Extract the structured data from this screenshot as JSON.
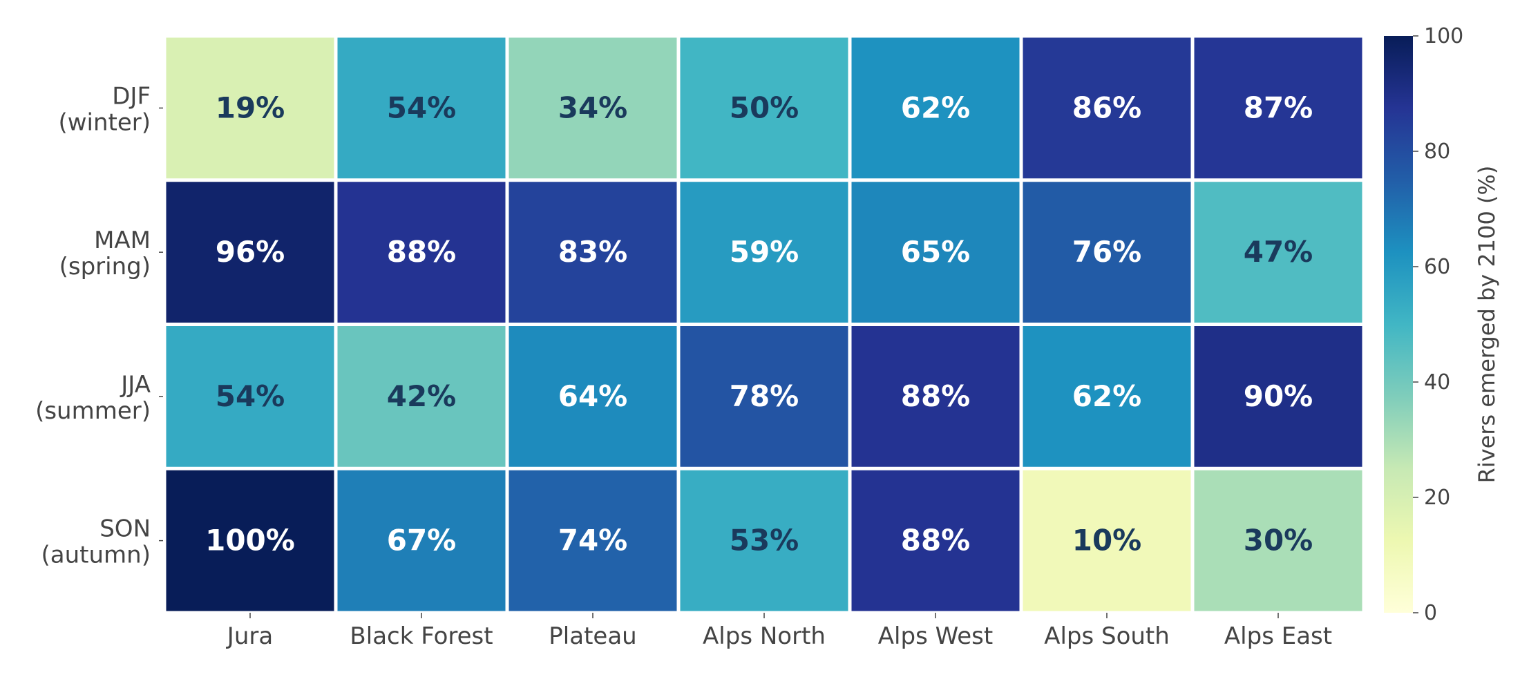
{
  "chart_data": {
    "type": "heatmap",
    "title": "",
    "xlabel": "",
    "ylabel": "",
    "x_categories": [
      "Jura",
      "Black Forest",
      "Plateau",
      "Alps North",
      "Alps West",
      "Alps South",
      "Alps East"
    ],
    "y_categories": [
      [
        "DJF",
        "(winter)"
      ],
      [
        "MAM",
        "(spring)"
      ],
      [
        "JJA",
        "(summer)"
      ],
      [
        "SON",
        "(autumn)"
      ]
    ],
    "values": [
      [
        19,
        54,
        34,
        50,
        62,
        86,
        87
      ],
      [
        96,
        88,
        83,
        59,
        65,
        76,
        47
      ],
      [
        54,
        42,
        64,
        78,
        88,
        62,
        90
      ],
      [
        100,
        67,
        74,
        53,
        88,
        10,
        30
      ]
    ],
    "value_format": "percent",
    "colorbar": {
      "label": "Rivers emerged by 2100 (%)",
      "range": [
        0,
        100
      ],
      "ticks": [
        0,
        20,
        40,
        60,
        80,
        100
      ],
      "colormap": "YlGnBu",
      "colors": [
        "#ffffd9",
        "#edf8b1",
        "#c7e9b4",
        "#7fcdbb",
        "#41b6c4",
        "#1d91c0",
        "#225ea8",
        "#253494",
        "#081d58"
      ]
    },
    "label_colors": {
      "light": "#ffffff",
      "dark": "#1a3a5c"
    }
  }
}
